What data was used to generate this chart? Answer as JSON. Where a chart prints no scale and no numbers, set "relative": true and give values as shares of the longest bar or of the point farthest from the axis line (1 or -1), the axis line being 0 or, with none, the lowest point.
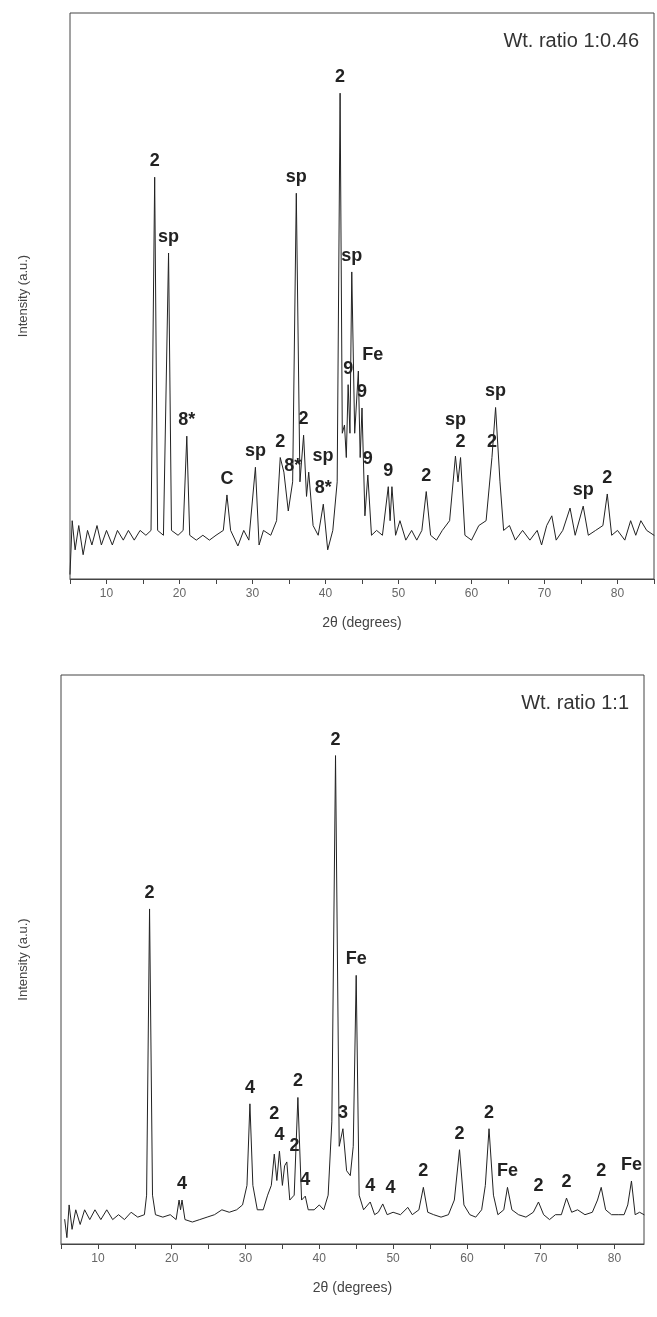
{
  "chart_data": [
    {
      "type": "line",
      "title": "Wt. ratio 1:0.46",
      "xlabel": "2θ (degrees)",
      "ylabel": "Intensity (a.u.)",
      "relative": true,
      "xlim": [
        5,
        85
      ],
      "xticks": [
        {
          "value": 5,
          "label": null
        },
        10,
        {
          "value": 15,
          "label": null
        },
        20,
        {
          "value": 25,
          "label": null
        },
        30,
        {
          "value": 35,
          "label": null
        },
        40,
        {
          "value": 45,
          "label": null
        },
        50,
        {
          "value": 55,
          "label": null
        },
        60,
        {
          "value": 65,
          "label": null
        },
        70,
        {
          "value": 75,
          "label": null
        },
        80,
        {
          "value": 85,
          "label": null
        }
      ],
      "marker": "none",
      "line_style": "solid",
      "series": [
        {
          "color": "#222222",
          "x": [
            5.0,
            5.3,
            5.7,
            6.2,
            6.8,
            7.4,
            8.0,
            8.7,
            9.3,
            10.0,
            10.8,
            11.5,
            12.3,
            13.0,
            13.8,
            14.6,
            15.4,
            16.1,
            16.6,
            17.0,
            17.8,
            18.5,
            18.9,
            19.8,
            20.5,
            21.0,
            21.4,
            22.3,
            23.2,
            24.1,
            25.0,
            26.0,
            26.5,
            27.0,
            28.0,
            28.8,
            29.5,
            30.4,
            30.9,
            31.5,
            32.5,
            33.3,
            33.8,
            34.3,
            34.9,
            35.5,
            36.0,
            36.5,
            37.0,
            37.4,
            37.7,
            38.3,
            39.0,
            39.7,
            40.3,
            41.0,
            41.6,
            42.0,
            42.3,
            42.6,
            42.85,
            43.1,
            43.35,
            43.6,
            44.0,
            44.5,
            44.75,
            45.0,
            45.4,
            45.8,
            46.3,
            47.0,
            47.8,
            48.6,
            48.85,
            49.1,
            49.6,
            50.2,
            51.0,
            51.8,
            52.5,
            53.2,
            53.8,
            54.4,
            55.2,
            56.0,
            57.0,
            57.8,
            58.15,
            58.5,
            59.1,
            60.0,
            61.0,
            62.0,
            62.8,
            63.3,
            63.9,
            64.4,
            65.2,
            66.0,
            67.0,
            68.0,
            69.0,
            69.6,
            70.3,
            71.0,
            71.6,
            72.5,
            73.5,
            74.2,
            75.3,
            76.0,
            77.0,
            78.0,
            78.6,
            79.2,
            80.0,
            81.0,
            81.8,
            82.5,
            83.2,
            84.0,
            85.0
          ],
          "values": [
            0.01,
            0.12,
            0.06,
            0.11,
            0.05,
            0.1,
            0.07,
            0.11,
            0.07,
            0.1,
            0.07,
            0.1,
            0.08,
            0.1,
            0.08,
            0.1,
            0.09,
            0.1,
            0.827,
            0.1,
            0.09,
            0.671,
            0.1,
            0.09,
            0.1,
            0.294,
            0.09,
            0.08,
            0.09,
            0.08,
            0.09,
            0.1,
            0.173,
            0.1,
            0.068,
            0.1,
            0.08,
            0.23,
            0.07,
            0.1,
            0.09,
            0.12,
            0.25,
            0.22,
            0.14,
            0.2,
            0.794,
            0.2,
            0.296,
            0.17,
            0.22,
            0.11,
            0.09,
            0.154,
            0.06,
            0.1,
            0.2,
            1.0,
            0.3,
            0.317,
            0.25,
            0.4,
            0.3,
            0.632,
            0.3,
            0.428,
            0.25,
            0.352,
            0.13,
            0.214,
            0.09,
            0.1,
            0.09,
            0.19,
            0.12,
            0.19,
            0.09,
            0.12,
            0.08,
            0.1,
            0.08,
            0.1,
            0.18,
            0.09,
            0.08,
            0.1,
            0.12,
            0.253,
            0.2,
            0.25,
            0.09,
            0.08,
            0.11,
            0.12,
            0.25,
            0.353,
            0.2,
            0.1,
            0.11,
            0.08,
            0.1,
            0.08,
            0.1,
            0.07,
            0.11,
            0.13,
            0.08,
            0.1,
            0.146,
            0.09,
            0.15,
            0.09,
            0.1,
            0.11,
            0.175,
            0.09,
            0.1,
            0.08,
            0.12,
            0.09,
            0.12,
            0.1,
            0.09
          ]
        }
      ],
      "annotations": [
        {
          "text": "2",
          "x": 42.0,
          "y": 1.0
        },
        {
          "text": "2",
          "x": 16.6,
          "y": 0.827
        },
        {
          "text": "sp",
          "x": 36.0,
          "y": 0.794
        },
        {
          "text": "sp",
          "x": 18.5,
          "y": 0.671
        },
        {
          "text": "sp",
          "x": 43.6,
          "y": 0.632
        },
        {
          "text": "9",
          "x": 43.1,
          "y": 0.4
        },
        {
          "text": "Fe",
          "x": 44.5,
          "y": 0.428
        },
        {
          "text": "sp",
          "x": 63.3,
          "y": 0.353
        },
        {
          "text": "9",
          "x": 45.0,
          "y": 0.352
        },
        {
          "text": "2",
          "x": 37.0,
          "y": 0.296
        },
        {
          "text": "8*",
          "x": 21.0,
          "y": 0.294
        },
        {
          "text": "2",
          "x": 62.8,
          "y": 0.25
        },
        {
          "text": "2",
          "x": 58.5,
          "y": 0.25
        },
        {
          "text": "sp",
          "x": 57.8,
          "y": 0.253
        },
        {
          "text": "2",
          "x": 33.8,
          "y": 0.25
        },
        {
          "text": "8*",
          "x": 35.5,
          "y": 0.2
        },
        {
          "text": "sp",
          "x": 30.4,
          "y": 0.23
        },
        {
          "text": "sp",
          "x": 37.7,
          "y": 0.22
        },
        {
          "text": "9",
          "x": 45.8,
          "y": 0.214
        },
        {
          "text": "9",
          "x": 48.6,
          "y": 0.19
        },
        {
          "text": "2",
          "x": 53.8,
          "y": 0.18
        },
        {
          "text": "2",
          "x": 78.6,
          "y": 0.175
        },
        {
          "text": "C",
          "x": 26.5,
          "y": 0.173
        },
        {
          "text": "8*",
          "x": 39.7,
          "y": 0.154
        },
        {
          "text": "sp",
          "x": 75.3,
          "y": 0.15
        }
      ]
    },
    {
      "type": "line",
      "title": "Wt. ratio 1:1",
      "xlabel": "2θ (degrees)",
      "ylabel": "Intensity (a.u.)",
      "relative": true,
      "xlim": [
        5,
        84
      ],
      "xticks": [
        {
          "value": 5,
          "label": null
        },
        10,
        {
          "value": 15,
          "label": null
        },
        20,
        {
          "value": 25,
          "label": null
        },
        30,
        {
          "value": 35,
          "label": null
        },
        40,
        {
          "value": 45,
          "label": null
        },
        50,
        {
          "value": 55,
          "label": null
        },
        60,
        {
          "value": 65,
          "label": null
        },
        70,
        {
          "value": 75,
          "label": null
        },
        80
      ],
      "marker": "none",
      "line_style": "solid",
      "series": [
        {
          "color": "#222222",
          "x": [
            5.5,
            5.8,
            6.1,
            6.5,
            7.0,
            7.6,
            8.2,
            8.9,
            9.6,
            10.4,
            11.2,
            12.0,
            12.8,
            13.6,
            14.5,
            15.4,
            16.3,
            16.6,
            17.0,
            17.4,
            17.8,
            18.8,
            19.8,
            20.6,
            21.0,
            21.2,
            21.4,
            21.8,
            22.8,
            23.8,
            24.8,
            25.8,
            26.8,
            27.8,
            28.8,
            29.6,
            30.2,
            30.6,
            31.0,
            31.6,
            32.4,
            33.0,
            33.5,
            33.9,
            34.25,
            34.6,
            35.0,
            35.3,
            35.6,
            36.0,
            36.6,
            37.1,
            37.6,
            38.1,
            38.5,
            39.3,
            40.0,
            40.6,
            41.2,
            41.7,
            42.2,
            42.7,
            43.2,
            43.7,
            44.2,
            44.6,
            45.0,
            45.4,
            46.0,
            46.9,
            47.5,
            48.0,
            48.6,
            49.2,
            50.0,
            51.0,
            52.0,
            52.6,
            53.5,
            54.1,
            54.7,
            55.5,
            56.5,
            57.5,
            58.3,
            59.0,
            59.6,
            60.4,
            61.2,
            62.0,
            62.5,
            63.0,
            63.6,
            64.2,
            65.0,
            65.5,
            66.1,
            67.0,
            68.0,
            69.0,
            69.7,
            70.4,
            71.2,
            72.0,
            72.8,
            73.5,
            74.2,
            75.0,
            76.0,
            77.0,
            77.7,
            78.2,
            78.8,
            79.6,
            80.5,
            81.3,
            81.8,
            82.3,
            82.8,
            83.4,
            84.0
          ],
          "values": [
            0.05,
            0.013,
            0.08,
            0.03,
            0.07,
            0.04,
            0.07,
            0.05,
            0.07,
            0.05,
            0.07,
            0.05,
            0.06,
            0.05,
            0.065,
            0.055,
            0.06,
            0.1,
            0.686,
            0.1,
            0.06,
            0.055,
            0.06,
            0.05,
            0.09,
            0.07,
            0.09,
            0.05,
            0.045,
            0.05,
            0.055,
            0.06,
            0.07,
            0.065,
            0.07,
            0.08,
            0.12,
            0.287,
            0.12,
            0.07,
            0.07,
            0.1,
            0.12,
            0.184,
            0.13,
            0.19,
            0.12,
            0.16,
            0.168,
            0.09,
            0.1,
            0.3,
            0.09,
            0.098,
            0.07,
            0.07,
            0.08,
            0.07,
            0.1,
            0.25,
            1.0,
            0.2,
            0.236,
            0.15,
            0.14,
            0.2,
            0.55,
            0.1,
            0.07,
            0.086,
            0.06,
            0.065,
            0.082,
            0.06,
            0.065,
            0.06,
            0.075,
            0.06,
            0.07,
            0.116,
            0.065,
            0.06,
            0.055,
            0.06,
            0.09,
            0.193,
            0.08,
            0.06,
            0.055,
            0.07,
            0.12,
            0.236,
            0.1,
            0.06,
            0.07,
            0.116,
            0.07,
            0.06,
            0.055,
            0.065,
            0.086,
            0.06,
            0.05,
            0.06,
            0.06,
            0.094,
            0.065,
            0.07,
            0.06,
            0.065,
            0.09,
            0.116,
            0.07,
            0.06,
            0.06,
            0.06,
            0.08,
            0.129,
            0.06,
            0.065,
            0.06
          ]
        }
      ],
      "annotations": [
        {
          "text": "2",
          "x": 42.2,
          "y": 1.0
        },
        {
          "text": "2",
          "x": 17.0,
          "y": 0.686
        },
        {
          "text": "Fe",
          "x": 45.0,
          "y": 0.55
        },
        {
          "text": "2",
          "x": 37.1,
          "y": 0.3
        },
        {
          "text": "4",
          "x": 30.6,
          "y": 0.287
        },
        {
          "text": "3",
          "x": 43.2,
          "y": 0.236
        },
        {
          "text": "2",
          "x": 63.0,
          "y": 0.236
        },
        {
          "text": "2",
          "x": 59.0,
          "y": 0.193
        },
        {
          "text": "4",
          "x": 34.6,
          "y": 0.19
        },
        {
          "text": "2",
          "x": 33.9,
          "y": 0.184
        },
        {
          "text": "2",
          "x": 35.6,
          "y": 0.168
        },
        {
          "text": "Fe",
          "x": 82.3,
          "y": 0.129
        },
        {
          "text": "2",
          "x": 54.1,
          "y": 0.116
        },
        {
          "text": "Fe",
          "x": 65.5,
          "y": 0.116
        },
        {
          "text": "2",
          "x": 78.2,
          "y": 0.116
        },
        {
          "text": "4",
          "x": 38.1,
          "y": 0.098
        },
        {
          "text": "2",
          "x": 73.5,
          "y": 0.094
        },
        {
          "text": "4",
          "x": 21.4,
          "y": 0.09
        },
        {
          "text": "4",
          "x": 46.9,
          "y": 0.086
        },
        {
          "text": "2",
          "x": 69.7,
          "y": 0.086
        },
        {
          "text": "4",
          "x": 48.6,
          "y": 0.082
        }
      ]
    }
  ]
}
